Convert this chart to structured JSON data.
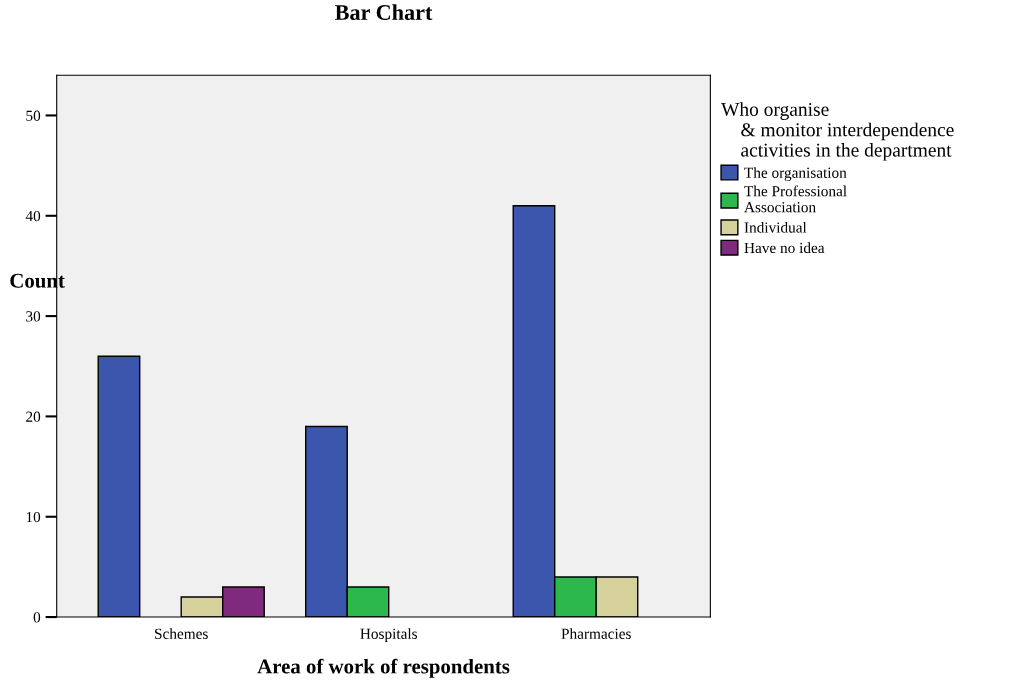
{
  "chart_data": {
    "type": "bar",
    "title": "Bar Chart",
    "xlabel": "Area of work of respondents",
    "ylabel": "Count",
    "legend_title": "Who organise\n    & monitor interdependence\n    activities in the department",
    "categories": [
      "Schemes",
      "Hospitals",
      "Pharmacies"
    ],
    "series": [
      {
        "name": "The organisation",
        "color": "#3d56ad",
        "values": [
          26,
          19,
          41
        ]
      },
      {
        "name": "The Professional\nAssociation",
        "color": "#2db84d",
        "values": [
          null,
          3,
          4
        ]
      },
      {
        "name": "Individual",
        "color": "#d6d19a",
        "values": [
          2,
          null,
          4
        ]
      },
      {
        "name": "Have no idea",
        "color": "#7f2a7c",
        "values": [
          3,
          null,
          null
        ]
      }
    ],
    "ylim": [
      0,
      54
    ],
    "yticks": [
      0,
      10,
      20,
      30,
      40,
      50
    ],
    "grid": false,
    "legend": "right"
  }
}
